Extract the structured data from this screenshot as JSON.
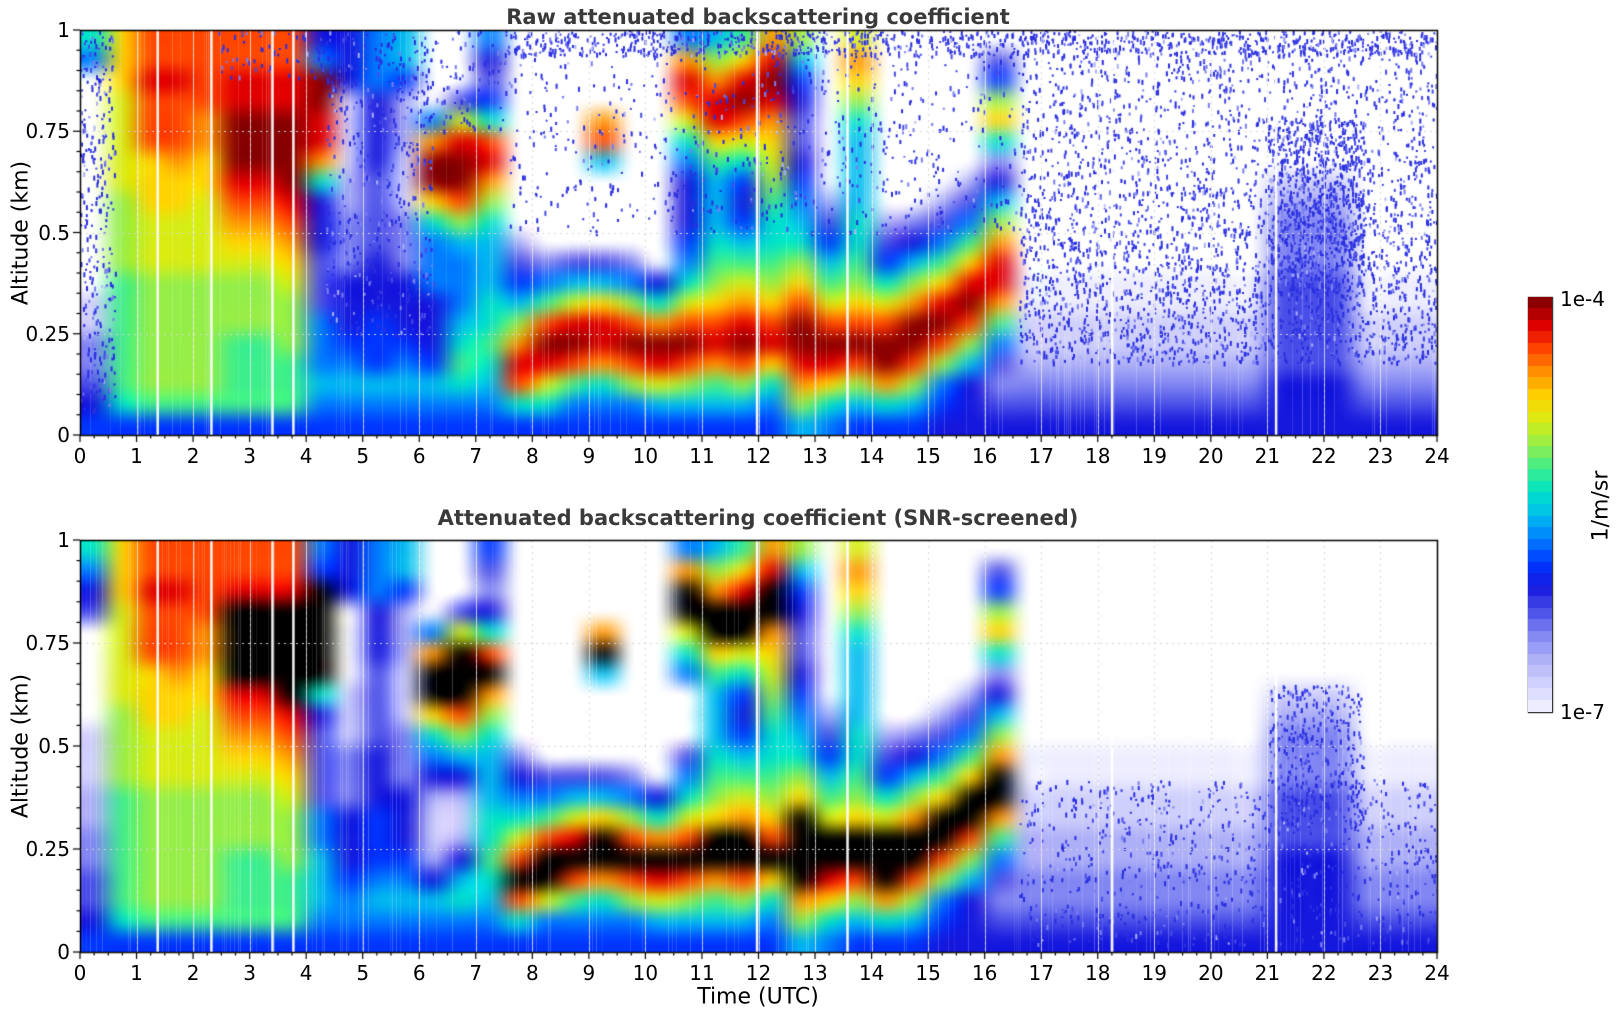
{
  "figure": {
    "background": "#ffffff"
  },
  "chart_data": {
    "type": "heatmap",
    "x_axis": {
      "label": "Time (UTC)",
      "lim": [
        0,
        24
      ],
      "tick_labels": [
        "0",
        "1",
        "2",
        "3",
        "4",
        "5",
        "6",
        "7",
        "8",
        "9",
        "10",
        "11",
        "12",
        "13",
        "14",
        "15",
        "16",
        "17",
        "18",
        "19",
        "20",
        "21",
        "22",
        "23",
        "24"
      ],
      "minor_step": 0.25,
      "grid": true
    },
    "y_axis": {
      "label": "Altitude (km)",
      "lim": [
        0,
        1
      ],
      "tick_labels": [
        "0",
        "0.25",
        "0.5",
        "0.75",
        "1"
      ],
      "minor_step": 0.05,
      "grid": true
    },
    "colorbar": {
      "units_label": "1/m/sr",
      "top_label": "1e-4",
      "bottom_label": "1e-7",
      "vmin": 1e-07,
      "vmax": 0.0001,
      "scale": "log10",
      "palette": [
        "#ededff",
        "#cfcffc",
        "#adaff7",
        "#8186f2",
        "#4a4fe8",
        "#1518dd",
        "#0036ff",
        "#007bff",
        "#00bcee",
        "#00e3c8",
        "#3fee8b",
        "#95ee48",
        "#d7ec14",
        "#ffd400",
        "#ff9400",
        "#ff4600",
        "#e00000",
        "#8b0000"
      ],
      "no_data_color": "#ffffff",
      "saturated_color": "#000000",
      "bands": 36
    },
    "encoding": {
      "level_chars": "0123456789abcdefgh",
      "no_data_char": ".",
      "saturated_char": "K",
      "grid_cols": 48,
      "grid_rows": 20,
      "dt_hours": 0.5,
      "dz_km": 0.05,
      "orientation": "columns-top-to-bottom"
    },
    "panels": [
      {
        "title": "Raw attenuated backscattering coefficient",
        "grid": [
          "97...........1133456",
          "dddcccccbbbbaaaaaa96",
          "ffgfffdddcccbbbbbba6",
          "ffgfffeddcccbbbbbba6",
          "ffffeeddccccbbbbbba6",
          "ffgghhhgfedcbbbaaaa6",
          "ffgghhhgfedcbbbaaaa6",
          "ffgghhhhgfedcbbbaaa6",
          "57hhgge9555444777876",
          "55511112233355567876",
          "77755554444555666876",
          "88622211133355567876",
          "....7ehhd97775556876",
          "...4cghhfb877789a976",
          "75469fgeb988899a9876",
          "..........2468begf96",
          "...........37afhgc96",
          "...........48cghfa76",
          "....ef8....48dgge976",
          "...........37bfhfb76",
          "............59ehgc86",
          "7egfc97555679cfhfb86",
          "8beggda8889abdfgea86",
          "adghfc96568aceghfb86",
          "eghgedcba99abdfgd976",
          "b8654456789bdfhhgeb8",
          "........2468acfhgd97",
          "cedb9888899abdfhfb86",
          ".........2469cfhhe96",
          ".........358behhfb86",
          "........247adghfb765",
          ".......247adghfb8555",
          ".46bd9358beggea74345",
          "............00112345",
          "............00112345",
          "............00112345",
          "............00112345",
          "............00112345",
          "............00112345",
          "............00112345",
          "............00112345",
          "............00112345",
          ".......1233344444555",
          ".......1233344444555",
          ".......1233344444555",
          "............00112345",
          "............00112345",
          "............00112345"
        ],
        "noise_regions": [
          {
            "t0": 0.0,
            "t1": 0.62,
            "z0": 0.05,
            "z1": 1.0,
            "density": 0.22
          },
          {
            "t0": 2.4,
            "t1": 4.4,
            "z0": 0.88,
            "z1": 1.0,
            "density": 0.12
          },
          {
            "t0": 4.35,
            "t1": 6.25,
            "z0": 0.25,
            "z1": 1.0,
            "density": 0.14
          },
          {
            "t0": 6.0,
            "t1": 7.6,
            "z0": 0.75,
            "z1": 1.0,
            "density": 0.1
          },
          {
            "t0": 7.6,
            "t1": 16.6,
            "z0": 0.5,
            "z1": 1.0,
            "density": 0.07
          },
          {
            "t0": 7.5,
            "t1": 24.0,
            "z0": 0.94,
            "z1": 1.0,
            "density": 0.35
          },
          {
            "t0": 16.6,
            "t1": 24.0,
            "z0": 0.62,
            "z1": 1.0,
            "density": 0.18
          },
          {
            "t0": 16.6,
            "t1": 24.0,
            "z0": 0.38,
            "z1": 0.62,
            "density": 0.26
          },
          {
            "t0": 16.6,
            "t1": 24.0,
            "z0": 0.18,
            "z1": 0.38,
            "density": 0.3
          },
          {
            "t0": 21.0,
            "t1": 22.7,
            "z0": 0.35,
            "z1": 0.78,
            "density": 0.45
          }
        ],
        "gap_times": [
          1.37,
          2.32,
          3.4,
          3.77,
          11.97,
          13.57,
          18.25,
          21.15
        ],
        "texture_seed": 7
      },
      {
        "title": "Attenuated backscattering coefficient (SNR-screened)",
        "grid": [
          "9754.....11122334456",
          "dddcccccbbbbaaaaaa96",
          "ffgfffdddcccbbbbbba6",
          "ffgfffeddcccbbbbbba6",
          "ffffeeddccccbbbbbba6",
          "ffgKKKKgfedcbbbaaaa6",
          "ffgKKKKgfedcbbbaaaa6",
          "ffgKKKKKgfedcbbbaaa6",
          "76KKKKK9544447788876",
          "555....1113335556776",
          "77755544445556667876",
          "88622211133355567876",
          "....7eKKd97521125876",
          "...4cKKKfb8521258976",
          "64359fKeb988899a9876",
          "..........3579cfKf96",
          "...........47afKKc76",
          "...........48cgKfa76",
          "....eK8....48dKKe976",
          "...........37bfKfb76",
          "............59eKgc86",
          "7eKKc97...479cfKfb86",
          "8beKKda8889abdKKea86",
          "adgKKc96568aceKKfb86",
          "egKKedcba99abdfKd976",
          "b8654456789bdKKKKeb8",
          "........2468acKKgd97",
          "cedb9888899abdKKfb86",
          ".........2469cKKKe96",
          ".........358beKKfb86",
          "........247adKKfb765",
          ".......247adKKfb8555",
          ".46bd9358beKKea74345",
          "..........0011223345",
          "..........0011223345",
          "..........0011223345",
          "..........0011223345",
          "..........0011223345",
          "..........0011223345",
          "..........0011223345",
          "..........0011223345",
          "..........0011223345",
          ".......1233344455555",
          ".......1233344455555",
          ".......1233344455555",
          "..........0011223345",
          "..........0011223345",
          "..........0011223345"
        ],
        "noise_regions": [
          {
            "t0": 16.6,
            "t1": 24.0,
            "z0": 0.02,
            "z1": 0.42,
            "density": 0.12
          },
          {
            "t0": 21.0,
            "t1": 22.7,
            "z0": 0.3,
            "z1": 0.65,
            "density": 0.3
          }
        ],
        "gap_times": [
          1.37,
          2.32,
          3.4,
          3.77,
          11.97,
          13.57,
          18.25,
          21.15
        ],
        "texture_seed": 11
      }
    ]
  }
}
